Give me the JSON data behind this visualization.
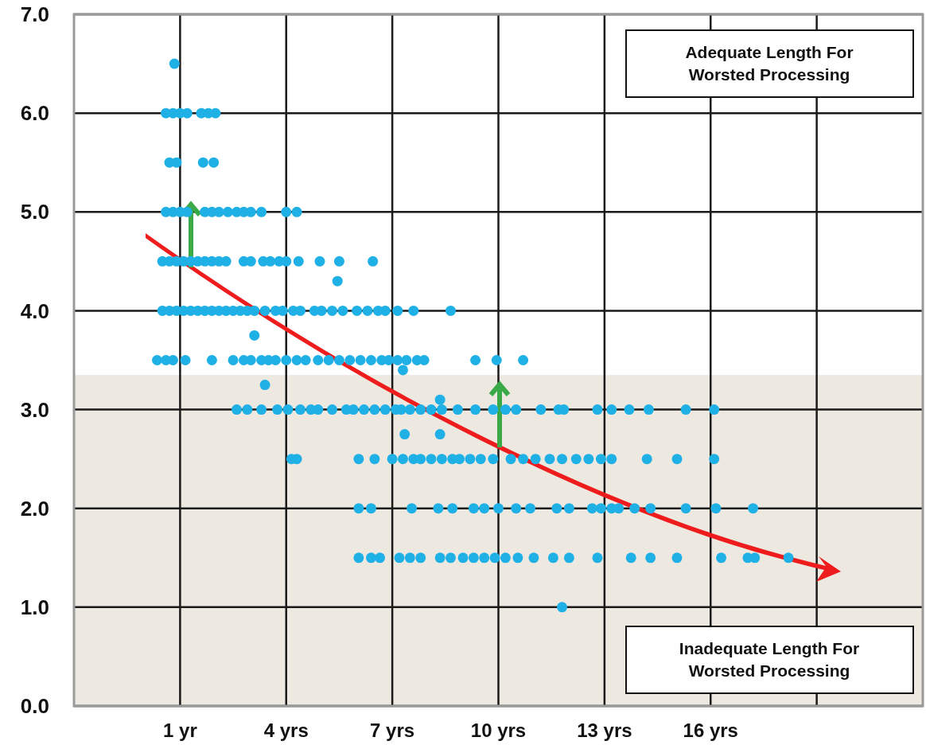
{
  "chart_data": {
    "type": "scatter",
    "xlim": [
      -2,
      22
    ],
    "ylim": [
      0,
      7
    ],
    "xticks": [
      {
        "value": 1,
        "label": "1 yr"
      },
      {
        "value": 4,
        "label": "4 yrs"
      },
      {
        "value": 7,
        "label": "7 yrs"
      },
      {
        "value": 10,
        "label": "10 yrs"
      },
      {
        "value": 13,
        "label": "13 yrs"
      },
      {
        "value": 16,
        "label": "16 yrs"
      },
      {
        "value": 19,
        "label": null
      }
    ],
    "yticks": [
      {
        "value": 0,
        "label": "0.0"
      },
      {
        "value": 1,
        "label": "1.0"
      },
      {
        "value": 2,
        "label": "2.0"
      },
      {
        "value": 3,
        "label": "3.0"
      },
      {
        "value": 4,
        "label": "4.0"
      },
      {
        "value": 5,
        "label": "5.0"
      },
      {
        "value": 6,
        "label": "6.0"
      },
      {
        "value": 7,
        "label": "7.0"
      }
    ],
    "grid": true,
    "marker": "circle",
    "bands": [
      {
        "axis": "y",
        "from": 0,
        "to": 3.35,
        "color": "#ede8e0"
      }
    ],
    "annotations": [
      "Adequate Length For Worsted Processing",
      "Inadequate Length For Worsted Processing"
    ],
    "series": [
      {
        "color": "#1fb0e6",
        "x": [
          0.84
        ],
        "values": [
          6.5
        ]
      },
      {
        "color": "#1fb0e6",
        "x": [
          0.6,
          0.8,
          1.0,
          1.2,
          1.6,
          1.8,
          2.0
        ],
        "values": [
          6,
          6,
          6,
          6,
          6,
          6,
          6
        ]
      },
      {
        "color": "#1fb0e6",
        "x": [
          0.7,
          0.9,
          1.65,
          1.95
        ],
        "values": [
          5.5,
          5.5,
          5.5,
          5.5
        ]
      },
      {
        "color": "#1fb0e6",
        "x": [
          0.6,
          0.8,
          1.0,
          1.2,
          1.7,
          1.9,
          2.1,
          2.35,
          2.6,
          2.8,
          3.0,
          3.3,
          4.0,
          4.3
        ],
        "values": [
          5,
          5,
          5,
          5,
          5,
          5,
          5,
          5,
          5,
          5,
          5,
          5,
          5,
          5
        ]
      },
      {
        "color": "#1fb0e6",
        "x": [
          0.5,
          0.7,
          0.9,
          1.1,
          1.3,
          1.5,
          1.7,
          1.9,
          2.1,
          2.3,
          2.8,
          3.0,
          3.35,
          3.55,
          3.8,
          4.0,
          4.35,
          4.95,
          5.5,
          6.45,
          5.45
        ],
        "values": [
          4.5,
          4.5,
          4.5,
          4.5,
          4.5,
          4.5,
          4.5,
          4.5,
          4.5,
          4.5,
          4.5,
          4.5,
          4.5,
          4.5,
          4.5,
          4.5,
          4.5,
          4.5,
          4.5,
          4.5,
          4.3
        ]
      },
      {
        "color": "#1fb0e6",
        "x": [
          0.5,
          0.7,
          0.9,
          1.1,
          1.3,
          1.5,
          1.7,
          1.9,
          2.1,
          2.3,
          2.5,
          2.7,
          2.9,
          3.1,
          3.4,
          3.7,
          3.9,
          4.2,
          4.4,
          4.8,
          5.0,
          5.3,
          5.6,
          6.0,
          6.3,
          6.6,
          6.8,
          7.15,
          7.6,
          8.65,
          3.1
        ],
        "values": [
          4,
          4,
          4,
          4,
          4,
          4,
          4,
          4,
          4,
          4,
          4,
          4,
          4,
          4,
          4,
          4,
          4,
          4,
          4,
          4,
          4,
          4,
          4,
          4,
          4,
          4,
          4,
          4,
          4,
          4,
          3.75
        ]
      },
      {
        "color": "#1fb0e6",
        "x": [
          0.35,
          0.6,
          0.8,
          1.15,
          1.9,
          2.5,
          2.8,
          3.0,
          3.3,
          3.5,
          3.7,
          4.0,
          4.3,
          4.55,
          4.9,
          5.2,
          5.5,
          5.8,
          6.1,
          6.4,
          6.7,
          6.9,
          7.15,
          7.4,
          7.7,
          7.9,
          9.35,
          9.95,
          10.7,
          7.3,
          3.4,
          8.35
        ],
        "values": [
          3.5,
          3.5,
          3.5,
          3.5,
          3.5,
          3.5,
          3.5,
          3.5,
          3.5,
          3.5,
          3.5,
          3.5,
          3.5,
          3.5,
          3.5,
          3.5,
          3.5,
          3.5,
          3.5,
          3.5,
          3.5,
          3.5,
          3.5,
          3.5,
          3.5,
          3.5,
          3.5,
          3.5,
          3.5,
          3.4,
          3.25,
          3.1
        ]
      },
      {
        "color": "#1fb0e6",
        "x": [
          2.6,
          2.9,
          3.3,
          3.75,
          4.05,
          4.4,
          4.7,
          4.9,
          5.3,
          5.7,
          5.9,
          6.2,
          6.5,
          6.8,
          7.1,
          7.25,
          7.5,
          7.8,
          8.1,
          8.4,
          8.85,
          9.35,
          9.85,
          10.2,
          10.5,
          11.2,
          11.7,
          11.85,
          12.8,
          13.2,
          13.7,
          14.25,
          15.3,
          16.1,
          7.35,
          8.35
        ],
        "values": [
          3,
          3,
          3,
          3,
          3,
          3,
          3,
          3,
          3,
          3,
          3,
          3,
          3,
          3,
          3,
          3,
          3,
          3,
          3,
          3,
          3,
          3,
          3,
          3,
          3,
          3,
          3,
          3,
          3,
          3,
          3,
          3,
          3,
          3,
          2.75,
          2.75
        ]
      },
      {
        "color": "#1fb0e6",
        "x": [
          4.15,
          4.3,
          6.05,
          6.5,
          7.0,
          7.3,
          7.6,
          7.8,
          8.1,
          8.4,
          8.7,
          8.9,
          9.2,
          9.5,
          9.85,
          10.35,
          10.7,
          11.05,
          11.45,
          11.8,
          12.2,
          12.55,
          12.9,
          13.2,
          14.2,
          15.05,
          16.1
        ],
        "values": [
          2.5,
          2.5,
          2.5,
          2.5,
          2.5,
          2.5,
          2.5,
          2.5,
          2.5,
          2.5,
          2.5,
          2.5,
          2.5,
          2.5,
          2.5,
          2.5,
          2.5,
          2.5,
          2.5,
          2.5,
          2.5,
          2.5,
          2.5,
          2.5,
          2.5,
          2.5,
          2.5
        ]
      },
      {
        "color": "#1fb0e6",
        "x": [
          6.05,
          6.4,
          7.55,
          8.3,
          8.7,
          9.3,
          9.6,
          10.0,
          10.5,
          10.9,
          11.65,
          12.0,
          12.65,
          12.9,
          13.2,
          13.4,
          13.85,
          14.3,
          15.3,
          16.15,
          17.2
        ],
        "values": [
          2,
          2,
          2,
          2,
          2,
          2,
          2,
          2,
          2,
          2,
          2,
          2,
          2,
          2,
          2,
          2,
          2,
          2,
          2,
          2,
          2
        ]
      },
      {
        "color": "#1fb0e6",
        "x": [
          6.05,
          6.4,
          6.65,
          7.2,
          7.5,
          7.8,
          8.35,
          8.65,
          9.0,
          9.3,
          9.6,
          9.9,
          10.2,
          10.55,
          11.0,
          11.55,
          12.0,
          12.8,
          13.75,
          14.3,
          15.05,
          16.3,
          17.05,
          17.25,
          18.2,
          11.8
        ],
        "values": [
          1.5,
          1.5,
          1.5,
          1.5,
          1.5,
          1.5,
          1.5,
          1.5,
          1.5,
          1.5,
          1.5,
          1.5,
          1.5,
          1.5,
          1.5,
          1.5,
          1.5,
          1.5,
          1.5,
          1.5,
          1.5,
          1.5,
          1.5,
          1.5,
          1.5,
          1.0
        ]
      }
    ]
  }
}
